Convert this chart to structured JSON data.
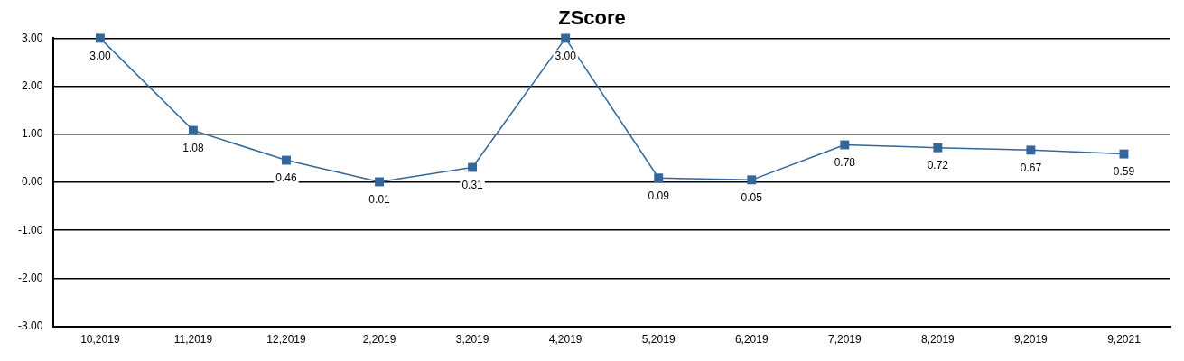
{
  "chart_data": {
    "type": "line",
    "title": "ZScore",
    "categories": [
      "10,2019",
      "11,2019",
      "12,2019",
      "2,2019",
      "3,2019",
      "4,2019",
      "5,2019",
      "6,2019",
      "7,2019",
      "8,2019",
      "9,2019",
      "9,2021"
    ],
    "series": [
      {
        "color": "#336699",
        "values": [
          3.0,
          1.08,
          0.46,
          0.01,
          0.31,
          3.0,
          0.09,
          0.05,
          0.78,
          0.72,
          0.67,
          0.59
        ],
        "value_labels": [
          "3.00",
          "1.08",
          "0.46",
          "0.01",
          "0.31",
          "3.00",
          "0.09",
          "0.05",
          "0.78",
          "0.72",
          "0.67",
          "0.59"
        ]
      }
    ],
    "ylim": [
      -3,
      3
    ],
    "yticks": [
      {
        "value": -3,
        "label": "-3.00"
      },
      {
        "value": -2,
        "label": "-2.00"
      },
      {
        "value": -1,
        "label": "-1.00"
      },
      {
        "value": 0,
        "label": "0.00"
      },
      {
        "value": 1,
        "label": "1.00"
      },
      {
        "value": 2,
        "label": "2.00"
      },
      {
        "value": 3,
        "label": "3.00"
      }
    ],
    "grid": "y",
    "legend": false,
    "marker": "square",
    "line_style": "solid"
  }
}
